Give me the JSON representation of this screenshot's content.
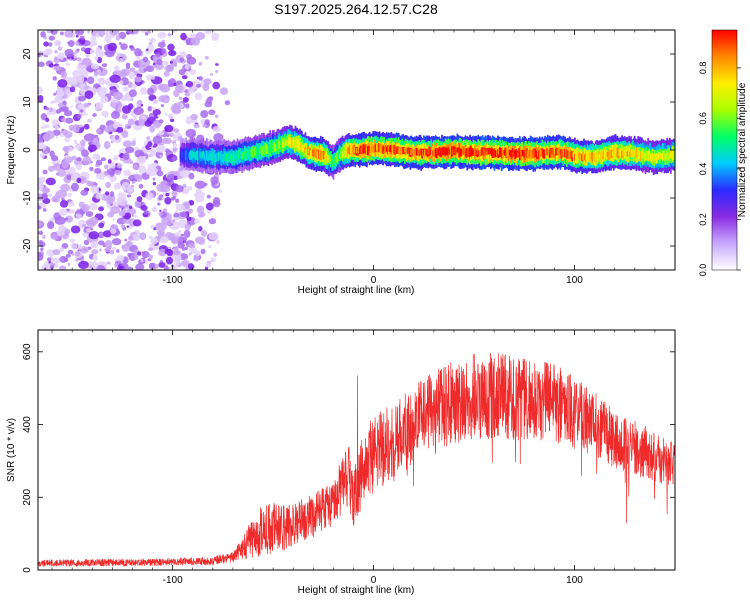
{
  "title": "S197.2025.264.12.57.C28",
  "colors": {
    "snr_line": "#ee2a2a",
    "track_core": "#ff1a1a",
    "noise": "#8a2be2",
    "axis": "#000000"
  },
  "colorbar": {
    "label": "Normalized spectral amplitude",
    "ticks": [
      "0.0",
      "0.2",
      "0.4",
      "0.6",
      "0.8"
    ],
    "tick_values": [
      0.0,
      0.2,
      0.4,
      0.6,
      0.8
    ],
    "range": [
      0,
      0.95
    ],
    "colormap": [
      "#ffffff",
      "#c8a8ff",
      "#8a2be2",
      "#2a2aff",
      "#00ccff",
      "#00ff66",
      "#aaff00",
      "#ffee00",
      "#ff8800",
      "#ff0000"
    ]
  },
  "chart_data": [
    {
      "type": "heatmap",
      "title": "S197.2025.264.12.57.C28",
      "xlabel": "Height of straight line (km)",
      "ylabel": "Frequency (Hz)",
      "xlim": [
        -167,
        150
      ],
      "ylim": [
        -25,
        25
      ],
      "xticks": [
        -100,
        0,
        100
      ],
      "xtick_labels": [
        "-100",
        "0",
        "100"
      ],
      "yticks": [
        -20,
        -10,
        0,
        10,
        20
      ],
      "ytick_labels": [
        "-20",
        "-10",
        "0",
        "10",
        "20"
      ],
      "noise_region_x": [
        -167,
        -75
      ],
      "track": {
        "x": [
          -96,
          -90,
          -80,
          -70,
          -60,
          -50,
          -42,
          -37,
          -32,
          -25,
          -20,
          -17,
          -12,
          -5,
          0,
          10,
          20,
          30,
          40,
          50,
          60,
          70,
          80,
          90,
          95,
          100,
          110,
          120,
          130,
          140,
          150
        ],
        "freq": [
          -1,
          -1,
          -1.5,
          -1.5,
          -0.5,
          0.5,
          1.8,
          1,
          -0.5,
          -1,
          -2.5,
          -1,
          0,
          0,
          0.3,
          0,
          -0.5,
          -0.5,
          -0.2,
          -0.5,
          -0.5,
          -0.8,
          -0.8,
          -0.5,
          -0.5,
          -1.2,
          -1.5,
          -0.5,
          -0.8,
          -1.5,
          -1
        ],
        "amplitude": [
          0.3,
          0.45,
          0.45,
          0.5,
          0.55,
          0.6,
          0.7,
          0.75,
          0.8,
          0.85,
          0.5,
          0.6,
          0.85,
          0.9,
          0.9,
          0.9,
          0.9,
          0.92,
          0.95,
          0.95,
          0.95,
          0.95,
          0.93,
          0.9,
          0.9,
          0.85,
          0.8,
          0.8,
          0.75,
          0.7,
          0.7
        ]
      }
    },
    {
      "type": "line",
      "xlabel": "Height of straight line (km)",
      "ylabel": "SNR (10 * v/v)",
      "xlim": [
        -167,
        150
      ],
      "ylim": [
        0,
        660
      ],
      "xticks": [
        -100,
        0,
        100
      ],
      "xtick_labels": [
        "-100",
        "0",
        "100"
      ],
      "yticks": [
        0,
        200,
        400,
        600
      ],
      "ytick_labels": [
        "0",
        "200",
        "400",
        "600"
      ],
      "series": [
        {
          "name": "SNR",
          "x": [
            -167,
            -140,
            -120,
            -100,
            -80,
            -70,
            -65,
            -60,
            -55,
            -50,
            -45,
            -40,
            -35,
            -30,
            -25,
            -20,
            -15,
            -12,
            -10,
            -5,
            0,
            10,
            20,
            30,
            40,
            50,
            60,
            70,
            80,
            90,
            100,
            110,
            120,
            130,
            140,
            150
          ],
          "values": [
            20,
            20,
            20,
            22,
            25,
            35,
            60,
            90,
            110,
            115,
            120,
            125,
            140,
            150,
            170,
            190,
            240,
            250,
            200,
            280,
            320,
            350,
            400,
            440,
            460,
            480,
            480,
            475,
            470,
            460,
            430,
            400,
            360,
            330,
            310,
            290
          ],
          "noise_amplitude": [
            10,
            10,
            10,
            10,
            12,
            15,
            30,
            60,
            70,
            70,
            70,
            60,
            60,
            60,
            60,
            70,
            80,
            90,
            80,
            100,
            110,
            110,
            110,
            110,
            120,
            120,
            120,
            120,
            110,
            110,
            100,
            90,
            80,
            70,
            70,
            60
          ],
          "spike": {
            "x": -8,
            "value": 535
          }
        }
      ]
    }
  ]
}
